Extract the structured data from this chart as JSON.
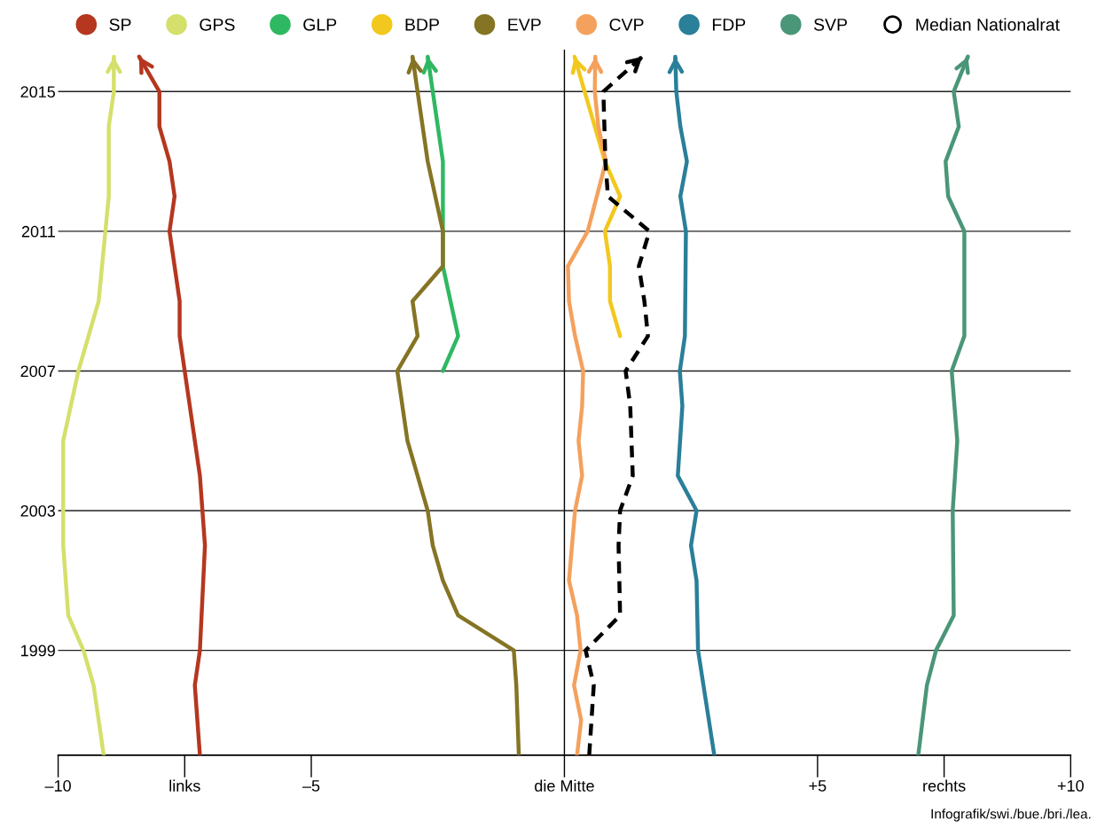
{
  "chart_data": {
    "type": "line",
    "orientation": "horizontal",
    "xlim": [
      -10,
      10
    ],
    "xticks": [
      {
        "value": -10,
        "label": "–10"
      },
      {
        "value": -7.5,
        "label": "links"
      },
      {
        "value": -5,
        "label": "–5"
      },
      {
        "value": 0,
        "label": "die Mitte"
      },
      {
        "value": 5,
        "label": "+5"
      },
      {
        "value": 7.5,
        "label": "rechts"
      },
      {
        "value": 10,
        "label": "+10"
      }
    ],
    "ylim": [
      1996,
      2016.2
    ],
    "yticks": [
      1999,
      2003,
      2007,
      2011,
      2015
    ],
    "grid": "y",
    "legend": "top",
    "marker": "none",
    "ref_lines": [
      {
        "axis": "x",
        "value": 0,
        "color": "#000000"
      }
    ],
    "annotations": [
      "Infografik/swi./bue./bri./lea."
    ],
    "series": [
      {
        "name": "SP",
        "color": "#b5371f",
        "x": [
          1996,
          1998,
          1999,
          2002,
          2004,
          2007,
          2008,
          2009,
          2011,
          2012,
          2013,
          2014,
          2015,
          2016
        ],
        "values": [
          -7.2,
          -7.3,
          -7.2,
          -7.1,
          -7.2,
          -7.5,
          -7.6,
          -7.6,
          -7.8,
          -7.7,
          -7.8,
          -8.0,
          -8.0,
          -8.4
        ]
      },
      {
        "name": "GPS",
        "color": "#d4e06b",
        "x": [
          1996,
          1998,
          1999,
          2000,
          2002,
          2004,
          2005,
          2007,
          2008,
          2009,
          2012,
          2014,
          2015,
          2016
        ],
        "values": [
          -9.1,
          -9.3,
          -9.5,
          -9.8,
          -9.9,
          -9.9,
          -9.9,
          -9.6,
          -9.4,
          -9.2,
          -9.0,
          -9.0,
          -8.9,
          -8.9
        ]
      },
      {
        "name": "GLP",
        "color": "#2fb862",
        "x": [
          2007,
          2008,
          2010,
          2011,
          2013,
          2015,
          2016
        ],
        "values": [
          -2.4,
          -2.1,
          -2.4,
          -2.4,
          -2.4,
          -2.6,
          -2.7
        ]
      },
      {
        "name": "BDP",
        "color": "#f2c81e",
        "x": [
          2008,
          2009,
          2010,
          2011,
          2012,
          2013,
          2014,
          2015,
          2016
        ],
        "values": [
          1.1,
          0.9,
          0.9,
          0.8,
          1.1,
          0.8,
          0.6,
          0.4,
          0.2
        ]
      },
      {
        "name": "EVP",
        "color": "#857424",
        "x": [
          1996,
          1998,
          1999,
          2000,
          2001,
          2002,
          2003,
          2005,
          2006,
          2007,
          2008,
          2009,
          2010,
          2011,
          2013,
          2015,
          2016
        ],
        "values": [
          -0.9,
          -0.95,
          -1.0,
          -2.1,
          -2.4,
          -2.6,
          -2.7,
          -3.1,
          -3.2,
          -3.3,
          -2.9,
          -3.0,
          -2.4,
          -2.4,
          -2.7,
          -2.9,
          -3.0
        ]
      },
      {
        "name": "CVP",
        "color": "#f4a15d",
        "x": [
          1996,
          1997,
          1998,
          1999,
          2000,
          2001,
          2003,
          2004,
          2005,
          2006,
          2007,
          2008,
          2009,
          2010,
          2011,
          2013,
          2014,
          2015,
          2016
        ],
        "values": [
          0.25,
          0.33,
          0.19,
          0.32,
          0.25,
          0.09,
          0.21,
          0.35,
          0.28,
          0.35,
          0.37,
          0.21,
          0.09,
          0.07,
          0.46,
          0.82,
          0.67,
          0.6,
          0.61
        ]
      },
      {
        "name": "FDP",
        "color": "#2a7f99",
        "x": [
          1996,
          1999,
          2001,
          2002,
          2003,
          2004,
          2006,
          2007,
          2008,
          2011,
          2012,
          2013,
          2014,
          2015,
          2016
        ],
        "values": [
          2.96,
          2.64,
          2.61,
          2.5,
          2.61,
          2.24,
          2.33,
          2.28,
          2.38,
          2.4,
          2.29,
          2.42,
          2.29,
          2.21,
          2.19
        ]
      },
      {
        "name": "SVP",
        "color": "#4a9678",
        "x": [
          1996,
          1998,
          1999,
          2000,
          2003,
          2005,
          2007,
          2008,
          2011,
          2012,
          2013,
          2014,
          2015,
          2016
        ],
        "values": [
          6.99,
          7.16,
          7.34,
          7.69,
          7.67,
          7.76,
          7.65,
          7.9,
          7.9,
          7.58,
          7.53,
          7.79,
          7.69,
          7.97
        ]
      },
      {
        "name": "Median Nationalrat",
        "color": "#000000",
        "line_style": "dashed",
        "x": [
          1996,
          1998,
          1999,
          2000,
          2002,
          2003,
          2004,
          2006,
          2007,
          2008,
          2009,
          2010,
          2011,
          2012,
          2013,
          2015,
          2016
        ],
        "values": [
          0.49,
          0.58,
          0.42,
          1.1,
          1.07,
          1.1,
          1.35,
          1.3,
          1.21,
          1.65,
          1.58,
          1.47,
          1.68,
          0.86,
          0.81,
          0.77,
          1.54
        ]
      }
    ]
  }
}
